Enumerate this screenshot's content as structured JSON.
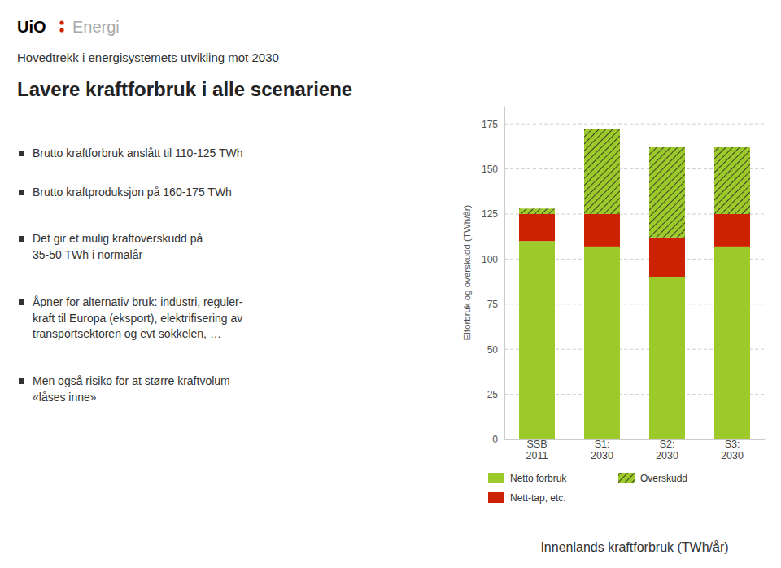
{
  "chart_data": {
    "type": "bar",
    "stacked": true,
    "title": "Lavere kraftforbruk i alle scenariene",
    "subtitle": "Innenlands kraftforbruk (TWh/år)",
    "ylabel": "Elforbruk og overskudd (TWh/år)",
    "annotations": [
      "UiO",
      "Energi",
      "Hovedtrekk i energisystemets utvikling mot 2030",
      "Brutto kraftforbruk anslått til 110-125 TWh",
      "Brutto kraftproduksjon på 160-175 TWh",
      "Det gir et mulig kraftoverskudd på\n35-50 TWh i normalår",
      "Åpner for alternativ bruk: industri, reguler-\nkraft til Europa (eksport), elektrifisering av\ntransportsektoren og evt sokkelen, …",
      "Men også risiko for at større kraftvolum\n«låses inne»"
    ],
    "categories": [
      "SSB\n2011",
      "S1:\n2030",
      "S2:\n2030",
      "S3:\n2030"
    ],
    "series": [
      {
        "name": "Netto forbruk",
        "color": "#9dc92b",
        "values": [
          110,
          107,
          90,
          107
        ]
      },
      {
        "name": "Nett-tap, etc.",
        "color": "#cc2200",
        "values": [
          15,
          18,
          22,
          18
        ]
      },
      {
        "name": "Overskudd",
        "color": "#9dc92b",
        "values": [
          3,
          47,
          50,
          37
        ]
      }
    ],
    "ylim": [
      0,
      185
    ],
    "yticks": [
      0,
      25,
      50,
      75,
      100,
      125,
      150,
      175
    ],
    "grid": true,
    "legend": "bottom"
  }
}
